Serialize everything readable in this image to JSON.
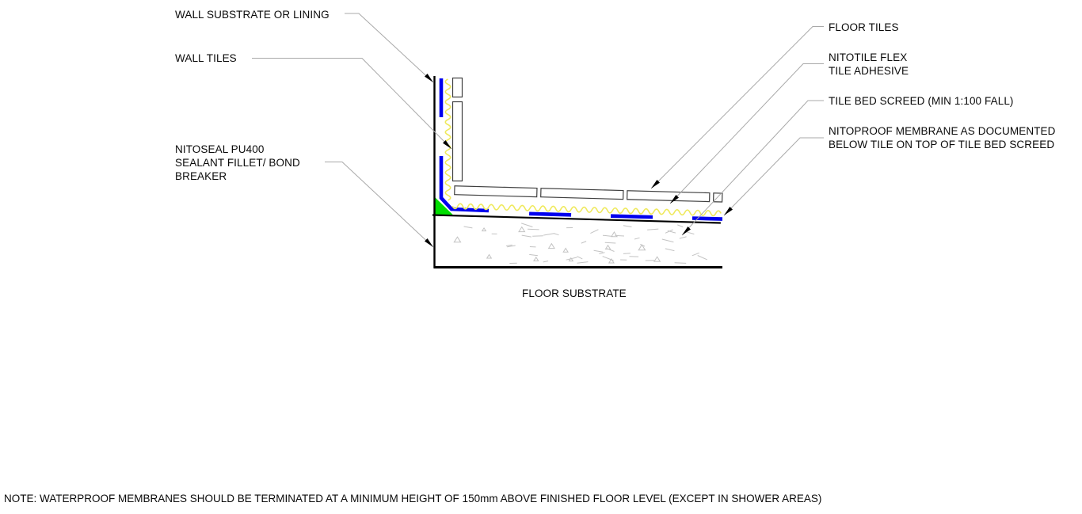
{
  "diagram": {
    "labels": {
      "wall_substrate": "WALL SUBSTRATE OR LINING",
      "wall_tiles": "WALL TILES",
      "nitoseal": "NITOSEAL PU400\nSEALANT FILLET/ BOND\nBREAKER",
      "floor_tiles": "FLOOR TILES",
      "nitotile": "NITOTILE FLEX\nTILE ADHESIVE",
      "tile_bed_screed": "TILE BED SCREED (MIN 1:100 FALL)",
      "nitoproof": "NITOPROOF MEMBRANE AS DOCUMENTED\nBELOW TILE ON TOP OF TILE BED SCREED",
      "floor_substrate": "FLOOR SUBSTRATE"
    },
    "note": "NOTE: WATERPROOF MEMBRANES SHOULD BE TERMINATED AT A MINIMUM HEIGHT OF 150mm ABOVE FINISHED FLOOR LEVEL (EXCEPT IN SHOWER AREAS)",
    "colors": {
      "membrane_blue": "#0000ee",
      "adhesive_yellow": "#efe95c",
      "sealant_green": "#00dd00",
      "line_black": "#000000",
      "leader_gray": "#a9a9a9",
      "hatch_gray": "#c3c3c3",
      "tile_outline": "#3f3f3f"
    }
  }
}
